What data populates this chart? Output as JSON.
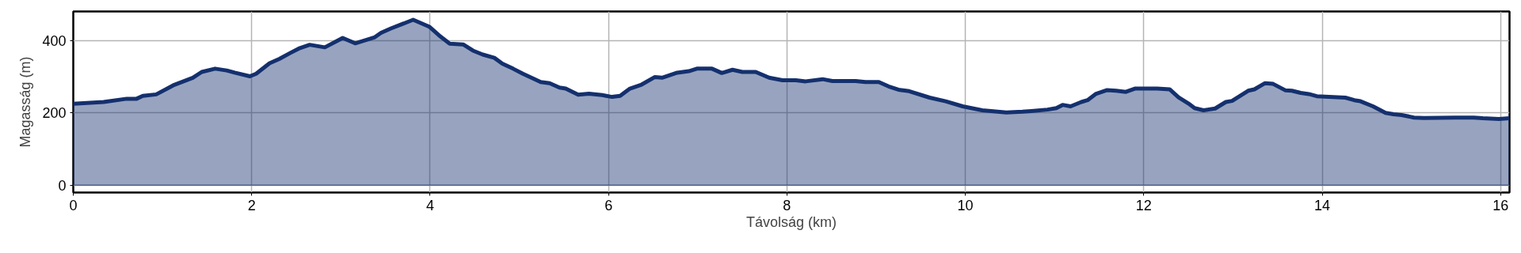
{
  "chart_data": {
    "type": "area",
    "xlabel": "Távolság (km)",
    "ylabel": "Magasság (m)",
    "xlim": [
      0,
      16.1
    ],
    "ylim": [
      -20,
      480
    ],
    "xticks": [
      0,
      2,
      4,
      6,
      8,
      10,
      12,
      14,
      16
    ],
    "yticks": [
      0,
      200,
      400
    ],
    "grid": true,
    "series": [
      {
        "color": "#14306e",
        "x": [
          0,
          0.34,
          0.6,
          0.71,
          0.78,
          0.93,
          1.12,
          1.34,
          1.44,
          1.59,
          1.72,
          1.81,
          1.98,
          2.05,
          2.2,
          2.31,
          2.43,
          2.54,
          2.65,
          2.82,
          3.02,
          3.16,
          3.38,
          3.45,
          3.56,
          3.81,
          3.99,
          4.1,
          4.22,
          4.37,
          4.48,
          4.59,
          4.72,
          4.81,
          4.93,
          5.04,
          5.24,
          5.34,
          5.45,
          5.52,
          5.66,
          5.78,
          5.93,
          6.04,
          6.13,
          6.24,
          6.37,
          6.52,
          6.6,
          6.77,
          6.9,
          6.99,
          7.16,
          7.27,
          7.39,
          7.5,
          7.65,
          7.8,
          7.95,
          8.1,
          8.21,
          8.4,
          8.51,
          8.77,
          8.88,
          9.03,
          9.14,
          9.25,
          9.37,
          9.6,
          9.78,
          9.97,
          10.19,
          10.46,
          10.64,
          10.74,
          10.92,
          11.02,
          11.09,
          11.18,
          11.3,
          11.37,
          11.46,
          11.59,
          11.69,
          11.8,
          11.9,
          12.15,
          12.29,
          12.39,
          12.5,
          12.57,
          12.67,
          12.8,
          12.92,
          12.99,
          13.17,
          13.24,
          13.36,
          13.45,
          13.59,
          13.66,
          13.76,
          13.85,
          13.94,
          14.26,
          14.36,
          14.43,
          14.57,
          14.71,
          14.8,
          14.89,
          15.03,
          15.14,
          15.49,
          15.7,
          15.8,
          15.98,
          16.1
        ],
        "values": [
          225,
          230,
          239,
          239,
          247,
          251,
          276,
          297,
          313,
          322,
          317,
          311,
          301,
          308,
          337,
          349,
          365,
          379,
          388,
          381,
          407,
          392,
          409,
          421,
          433,
          457,
          438,
          414,
          391,
          389,
          372,
          361,
          352,
          336,
          322,
          308,
          285,
          282,
          270,
          267,
          250,
          253,
          249,
          244,
          247,
          267,
          278,
          299,
          297,
          311,
          315,
          322,
          322,
          310,
          319,
          313,
          313,
          297,
          290,
          290,
          287,
          293,
          288,
          288,
          285,
          285,
          273,
          264,
          260,
          242,
          232,
          218,
          207,
          201,
          203,
          205,
          209,
          213,
          222,
          218,
          230,
          235,
          252,
          263,
          261,
          258,
          267,
          267,
          265,
          243,
          226,
          213,
          207,
          212,
          230,
          233,
          261,
          265,
          282,
          280,
          262,
          261,
          255,
          252,
          246,
          242,
          235,
          232,
          218,
          200,
          196,
          194,
          187,
          186,
          187,
          187,
          185,
          183,
          185
        ]
      }
    ]
  }
}
